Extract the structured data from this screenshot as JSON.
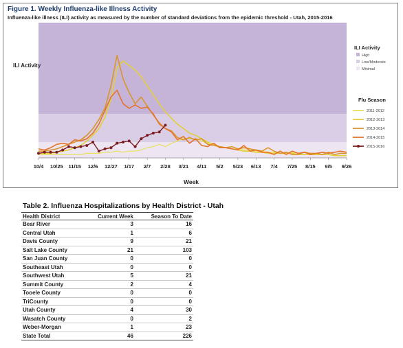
{
  "figure": {
    "title": "Figure 1. Weekly Influenza-like Illness Activity",
    "subtitle": "Influenza-like illness (ILI) activity  as measured by the number of standard deviations from the epidemic threshold - Utah, 2015-2016"
  },
  "chart_data": {
    "type": "line",
    "ylabel": "ILI Activity",
    "xlabel": "Week",
    "x_tick_labels": [
      "10/4",
      "10/25",
      "11/15",
      "12/6",
      "12/27",
      "1/17",
      "2/7",
      "2/28",
      "3/21",
      "4/11",
      "5/2",
      "5/23",
      "6/13",
      "7/4",
      "7/25",
      "8/15",
      "9/5",
      "9/26"
    ],
    "weeks_count": 52,
    "ylim": [
      0,
      12
    ],
    "bands": [
      {
        "name": "Minimal",
        "from": 0,
        "to": 1.4,
        "color": "#ede6f2"
      },
      {
        "name": "Low/Moderate",
        "from": 1.4,
        "to": 3.9,
        "color": "#dacde6"
      },
      {
        "name": "High",
        "from": 3.9,
        "to": 12,
        "color": "#c6b4d8"
      }
    ],
    "activity_legend": {
      "title": "ILI Activity",
      "items": [
        {
          "name": "High",
          "color": "#c6b4d8"
        },
        {
          "name": "Low/Moderate",
          "color": "#dacde6"
        },
        {
          "name": "Minimal",
          "color": "#ede6f2"
        }
      ]
    },
    "season_legend_title": "Flu Season",
    "series": [
      {
        "name": "2011-2012",
        "color": "#e8e05a",
        "width": 1.2,
        "values": [
          0.3,
          0.3,
          0.3,
          0.3,
          0.3,
          0.3,
          0.3,
          0.3,
          0.4,
          0.4,
          0.4,
          0.5,
          0.5,
          0.6,
          0.5,
          0.6,
          0.6,
          0.7,
          0.9,
          1.0,
          1.2,
          1.0,
          1.3,
          1.5,
          1.7,
          1.7,
          1.7,
          1.5,
          1.3,
          1.1,
          1.0,
          0.9,
          0.8,
          0.8,
          0.7,
          0.7,
          0.6,
          0.6,
          0.5,
          0.5,
          0.4,
          0.4,
          0.5,
          0.4,
          0.3,
          0.3,
          0.3,
          0.3,
          0.3,
          0.2,
          0.2,
          0.2
        ]
      },
      {
        "name": "2012-2013",
        "color": "#e3cf3a",
        "width": 1.6,
        "values": [
          0.4,
          0.4,
          0.4,
          0.5,
          0.6,
          0.7,
          0.9,
          1.1,
          1.5,
          2.0,
          2.6,
          3.6,
          5.2,
          8.0,
          8.6,
          8.2,
          7.8,
          7.2,
          6.4,
          5.6,
          4.8,
          4.1,
          3.5,
          3.0,
          2.6,
          2.2,
          2.0,
          1.7,
          1.4,
          1.2,
          1.0,
          0.9,
          0.8,
          0.7,
          0.6,
          0.6,
          0.5,
          0.5,
          0.4,
          0.4,
          0.4,
          0.4,
          0.4,
          0.3,
          0.3,
          0.3,
          0.3,
          0.3,
          0.3,
          0.2,
          0.2,
          0.2
        ]
      },
      {
        "name": "2013-2014",
        "color": "#d9952d",
        "width": 1.6,
        "values": [
          0.6,
          0.6,
          0.7,
          0.8,
          1.0,
          1.2,
          1.4,
          1.6,
          2.0,
          2.6,
          3.4,
          4.4,
          6.4,
          9.1,
          7.0,
          5.8,
          4.8,
          5.4,
          4.6,
          3.8,
          3.1,
          2.6,
          2.4,
          1.8,
          1.6,
          1.8,
          1.6,
          1.7,
          1.2,
          1.1,
          1.0,
          0.9,
          1.0,
          0.8,
          0.9,
          0.8,
          0.7,
          0.6,
          0.9,
          0.6,
          0.4,
          0.5,
          0.3,
          0.3,
          0.5,
          0.4,
          0.4,
          0.3,
          0.5,
          0.3,
          0.4,
          0.4
        ]
      },
      {
        "name": "2014-2015",
        "color": "#e4742c",
        "width": 1.6,
        "values": [
          0.8,
          0.7,
          0.9,
          1.2,
          1.3,
          1.2,
          1.6,
          1.5,
          1.7,
          2.2,
          3.0,
          4.2,
          5.4,
          6.0,
          4.8,
          4.4,
          4.7,
          4.4,
          4.5,
          3.9,
          3.0,
          2.6,
          2.3,
          1.6,
          1.9,
          1.3,
          1.7,
          1.1,
          1.0,
          1.3,
          0.9,
          0.9,
          0.8,
          0.7,
          1.1,
          0.6,
          0.7,
          0.5,
          0.5,
          0.3,
          0.6,
          0.3,
          0.6,
          0.4,
          0.5,
          0.3,
          0.4,
          0.5,
          0.4,
          0.5,
          0.6,
          0.5
        ]
      },
      {
        "name": "2015-2016",
        "color": "#7a1c20",
        "width": 1.4,
        "markers": true,
        "values": [
          0.4,
          0.5,
          0.5,
          0.5,
          0.7,
          1.0,
          0.9,
          1.0,
          1.1,
          1.4,
          0.6,
          0.8,
          0.9,
          1.3,
          1.4,
          1.5,
          1.0,
          1.7,
          2.0,
          2.2,
          2.3,
          2.9
        ]
      }
    ]
  },
  "table": {
    "title": "Table 2. Influenza Hospitalizations by Health District - Utah",
    "headers": [
      "Health District",
      "Current Week",
      "Season To Date"
    ],
    "rows": [
      [
        "Bear River",
        "3",
        "16"
      ],
      [
        "Central Utah",
        "1",
        "6"
      ],
      [
        "Davis County",
        "9",
        "21"
      ],
      [
        "Salt Lake County",
        "21",
        "103"
      ],
      [
        "San Juan County",
        "0",
        "0"
      ],
      [
        "Southeast Utah",
        "0",
        "0"
      ],
      [
        "Southwest Utah",
        "5",
        "21"
      ],
      [
        "Summit County",
        "2",
        "4"
      ],
      [
        "Tooele County",
        "0",
        "0"
      ],
      [
        "TriCounty",
        "0",
        "0"
      ],
      [
        "Utah County",
        "4",
        "30"
      ],
      [
        "Wasatch County",
        "0",
        "2"
      ],
      [
        "Weber-Morgan",
        "1",
        "23"
      ]
    ],
    "total": [
      "State Total",
      "46",
      "226"
    ]
  }
}
